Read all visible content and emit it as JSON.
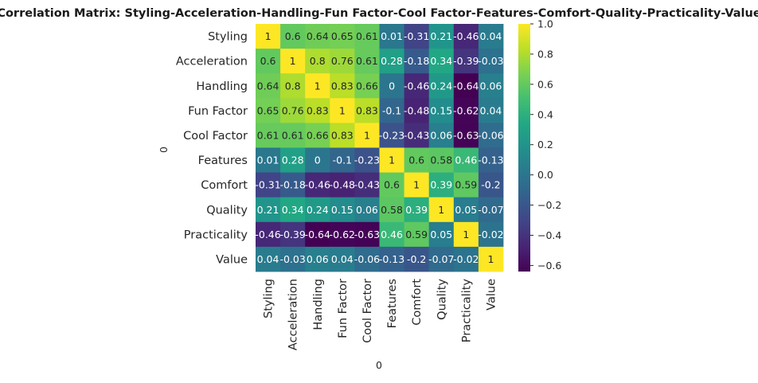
{
  "chart_data": {
    "type": "heatmap",
    "title": "Correlation Matrix: Styling-Acceleration-Handling-Fun Factor-Cool Factor-Features-Comfort-Quality-Practicality-Value",
    "xlabel": "0",
    "ylabel": "0",
    "labels": [
      "Styling",
      "Acceleration",
      "Handling",
      "Fun Factor",
      "Cool Factor",
      "Features",
      "Comfort",
      "Quality",
      "Practicality",
      "Value"
    ],
    "values": [
      [
        1,
        0.6,
        0.64,
        0.65,
        0.61,
        0.01,
        -0.31,
        0.21,
        -0.46,
        0.04
      ],
      [
        0.6,
        1,
        0.8,
        0.76,
        0.61,
        0.28,
        -0.18,
        0.34,
        -0.39,
        -0.03
      ],
      [
        0.64,
        0.8,
        1,
        0.83,
        0.66,
        0,
        -0.46,
        0.24,
        -0.64,
        0.06
      ],
      [
        0.65,
        0.76,
        0.83,
        1,
        0.83,
        -0.1,
        -0.48,
        0.15,
        -0.62,
        0.04
      ],
      [
        0.61,
        0.61,
        0.66,
        0.83,
        1,
        -0.23,
        -0.43,
        0.06,
        -0.63,
        -0.06
      ],
      [
        0.01,
        0.28,
        0,
        -0.1,
        -0.23,
        1,
        0.6,
        0.58,
        0.46,
        -0.13
      ],
      [
        -0.31,
        -0.18,
        -0.46,
        -0.48,
        -0.43,
        0.6,
        1,
        0.39,
        0.59,
        -0.2
      ],
      [
        0.21,
        0.34,
        0.24,
        0.15,
        0.06,
        0.58,
        0.39,
        1,
        0.05,
        -0.07
      ],
      [
        -0.46,
        -0.39,
        -0.64,
        -0.62,
        -0.63,
        0.46,
        0.59,
        0.05,
        1,
        -0.02
      ],
      [
        0.04,
        -0.03,
        0.06,
        0.04,
        -0.06,
        -0.13,
        -0.2,
        -0.07,
        -0.02,
        1
      ]
    ],
    "colormap": "viridis",
    "vmin": -0.64,
    "vmax": 1,
    "colorbar_ticks": [
      "1.0",
      "0.8",
      "0.6",
      "0.4",
      "0.2",
      "0.0",
      "−0.2",
      "−0.4",
      "−0.6"
    ],
    "colorbar_tick_values": [
      1.0,
      0.8,
      0.6,
      0.4,
      0.2,
      0.0,
      -0.2,
      -0.4,
      -0.6
    ],
    "annotated": true,
    "grid": false
  }
}
